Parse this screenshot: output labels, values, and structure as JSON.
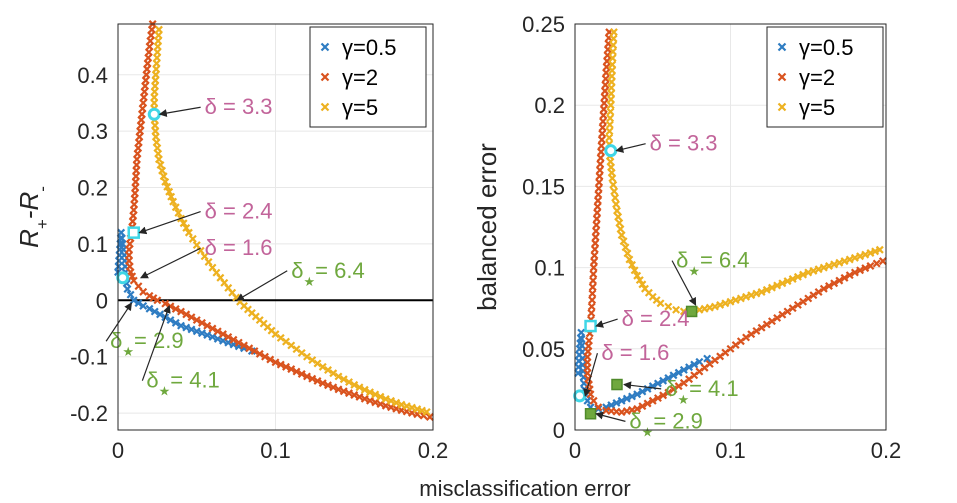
{
  "colors": {
    "s_05": "#2e7cc2",
    "s_2": "#d9531e",
    "s_5": "#edb120",
    "pink": "#c2649a",
    "green": "#6fa83e",
    "cyan": "#3fd6e6",
    "grid": "#e8e8e8",
    "axis": "#262626"
  },
  "shared_xlabel": "misclassification error",
  "chart_data": [
    {
      "type": "scatter",
      "title": "",
      "ylabel_main": "R",
      "ylabel_sub1": "+",
      "ylabel_mid": "-R",
      "ylabel_sub2": "-",
      "xlim": [
        0,
        0.2
      ],
      "ylim": [
        -0.23,
        0.49
      ],
      "xticks": [
        0,
        0.1,
        0.2
      ],
      "xtick_labels": [
        "0",
        "0.1",
        "0.2"
      ],
      "yticks": [
        -0.2,
        -0.1,
        0,
        0.1,
        0.2,
        0.3,
        0.4
      ],
      "ytick_labels": [
        "-0.2",
        "-0.1",
        "0",
        "0.1",
        "0.2",
        "0.3",
        "0.4"
      ],
      "grid": true,
      "zero_line": 0,
      "legend_position": "top-right",
      "series": [
        {
          "name": "γ=0.5",
          "color_key": "s_05",
          "marker": "x",
          "x": [
            0.0,
            0.002,
            0.003,
            0.004,
            0.005,
            0.006,
            0.008,
            0.01,
            0.013,
            0.016,
            0.02,
            0.03,
            0.04,
            0.05,
            0.06,
            0.07,
            0.08,
            0.085
          ],
          "y": [
            0.05,
            0.12,
            0.1,
            0.08,
            0.04,
            0.02,
            0.01,
            0.0,
            -0.005,
            -0.01,
            -0.015,
            -0.03,
            -0.045,
            -0.055,
            -0.065,
            -0.075,
            -0.085,
            -0.09
          ]
        },
        {
          "name": "γ=2",
          "color_key": "s_2",
          "marker": "x",
          "x": [
            0.022,
            0.02,
            0.018,
            0.016,
            0.014,
            0.012,
            0.011,
            0.01,
            0.009,
            0.008,
            0.007,
            0.007,
            0.008,
            0.01,
            0.013,
            0.016,
            0.02,
            0.025,
            0.03,
            0.04,
            0.05,
            0.06,
            0.07,
            0.08,
            0.09,
            0.1,
            0.11,
            0.12,
            0.13,
            0.14,
            0.15,
            0.16,
            0.17,
            0.18,
            0.19,
            0.198
          ],
          "y": [
            0.49,
            0.45,
            0.4,
            0.35,
            0.3,
            0.25,
            0.2,
            0.16,
            0.13,
            0.11,
            0.09,
            0.07,
            0.05,
            0.035,
            0.025,
            0.015,
            0.008,
            0.0,
            -0.006,
            -0.02,
            -0.035,
            -0.05,
            -0.065,
            -0.08,
            -0.095,
            -0.11,
            -0.122,
            -0.135,
            -0.147,
            -0.158,
            -0.168,
            -0.178,
            -0.187,
            -0.195,
            -0.202,
            -0.207
          ]
        },
        {
          "name": "γ=5",
          "color_key": "s_5",
          "marker": "x",
          "x": [
            0.026,
            0.025,
            0.024,
            0.023,
            0.023,
            0.024,
            0.026,
            0.03,
            0.035,
            0.04,
            0.045,
            0.05,
            0.055,
            0.06,
            0.065,
            0.07,
            0.075,
            0.08,
            0.09,
            0.1,
            0.11,
            0.12,
            0.13,
            0.14,
            0.15,
            0.16,
            0.17,
            0.18,
            0.19,
            0.196
          ],
          "y": [
            0.48,
            0.44,
            0.4,
            0.36,
            0.33,
            0.29,
            0.25,
            0.21,
            0.175,
            0.145,
            0.12,
            0.098,
            0.078,
            0.058,
            0.04,
            0.022,
            0.005,
            -0.01,
            -0.035,
            -0.06,
            -0.08,
            -0.1,
            -0.118,
            -0.135,
            -0.15,
            -0.163,
            -0.175,
            -0.185,
            -0.193,
            -0.198
          ]
        }
      ],
      "highlights": [
        {
          "x": 0.023,
          "y": 0.33,
          "style": "cyan-circle"
        },
        {
          "x": 0.01,
          "y": 0.12,
          "style": "cyan-square"
        },
        {
          "x": 0.003,
          "y": 0.04,
          "style": "cyan-circle"
        }
      ],
      "annotations": [
        {
          "text": "δ = 3.3",
          "color_key": "pink",
          "tx": 0.055,
          "ty": 0.33,
          "ax": 0.024,
          "ay": 0.33
        },
        {
          "text": "δ = 2.4",
          "color_key": "pink",
          "tx": 0.055,
          "ty": 0.145,
          "ax": 0.011,
          "ay": 0.12
        },
        {
          "text": "δ = 1.6",
          "color_key": "pink",
          "tx": 0.055,
          "ty": 0.08,
          "ax": 0.012,
          "ay": 0.04
        },
        {
          "text": "δ",
          "sub": "★",
          "rest": "= 6.4",
          "color_key": "green",
          "tx": 0.11,
          "ty": 0.04,
          "ax": 0.073,
          "ay": 0.0
        },
        {
          "text": "δ",
          "sub": "★",
          "rest": "= 2.9",
          "color_key": "green",
          "tx": -0.005,
          "ty": -0.085,
          "ax": 0.006,
          "ay": -0.005
        },
        {
          "text": "δ",
          "sub": "★",
          "rest": "= 4.1",
          "color_key": "green",
          "tx": 0.018,
          "ty": -0.155,
          "ax": 0.03,
          "ay": -0.01
        }
      ]
    },
    {
      "type": "scatter",
      "title": "",
      "ylabel": "balanced error",
      "xlim": [
        0,
        0.2
      ],
      "ylim": [
        0,
        0.25
      ],
      "xticks": [
        0,
        0.1,
        0.2
      ],
      "xtick_labels": [
        "0",
        "0.1",
        "0.2"
      ],
      "yticks": [
        0,
        0.05,
        0.1,
        0.15,
        0.2,
        0.25
      ],
      "ytick_labels": [
        "0",
        "0.05",
        "0.1",
        "0.15",
        "0.2",
        "0.25"
      ],
      "grid": true,
      "legend_position": "top-right",
      "series": [
        {
          "name": "γ=0.5",
          "color_key": "s_05",
          "marker": "x",
          "x": [
            0.002,
            0.003,
            0.004,
            0.005,
            0.006,
            0.008,
            0.01,
            0.015,
            0.02,
            0.03,
            0.04,
            0.05,
            0.06,
            0.07,
            0.08,
            0.085
          ],
          "y": [
            0.035,
            0.05,
            0.06,
            0.04,
            0.025,
            0.018,
            0.014,
            0.013,
            0.014,
            0.018,
            0.022,
            0.027,
            0.032,
            0.037,
            0.042,
            0.044
          ]
        },
        {
          "name": "γ=2",
          "color_key": "s_2",
          "marker": "x",
          "x": [
            0.022,
            0.02,
            0.018,
            0.016,
            0.014,
            0.012,
            0.011,
            0.01,
            0.009,
            0.008,
            0.008,
            0.009,
            0.01,
            0.012,
            0.015,
            0.02,
            0.03,
            0.04,
            0.05,
            0.06,
            0.07,
            0.08,
            0.09,
            0.1,
            0.11,
            0.12,
            0.13,
            0.14,
            0.15,
            0.16,
            0.17,
            0.18,
            0.19,
            0.198
          ],
          "y": [
            0.245,
            0.22,
            0.19,
            0.16,
            0.13,
            0.1,
            0.08,
            0.064,
            0.055,
            0.045,
            0.035,
            0.028,
            0.022,
            0.018,
            0.014,
            0.012,
            0.011,
            0.013,
            0.018,
            0.023,
            0.029,
            0.036,
            0.043,
            0.05,
            0.057,
            0.063,
            0.069,
            0.075,
            0.081,
            0.087,
            0.092,
            0.097,
            0.101,
            0.104
          ]
        },
        {
          "name": "γ=5",
          "color_key": "s_5",
          "marker": "x",
          "x": [
            0.025,
            0.024,
            0.023,
            0.022,
            0.022,
            0.024,
            0.027,
            0.03,
            0.035,
            0.04,
            0.045,
            0.05,
            0.055,
            0.06,
            0.065,
            0.07,
            0.075,
            0.08,
            0.09,
            0.1,
            0.11,
            0.12,
            0.13,
            0.14,
            0.15,
            0.16,
            0.17,
            0.18,
            0.19,
            0.196
          ],
          "y": [
            0.245,
            0.225,
            0.2,
            0.18,
            0.172,
            0.155,
            0.135,
            0.12,
            0.105,
            0.095,
            0.087,
            0.082,
            0.078,
            0.076,
            0.074,
            0.073,
            0.073,
            0.074,
            0.076,
            0.079,
            0.082,
            0.085,
            0.089,
            0.093,
            0.097,
            0.1,
            0.103,
            0.106,
            0.109,
            0.111
          ]
        }
      ],
      "highlights": [
        {
          "x": 0.023,
          "y": 0.172,
          "style": "cyan-circle"
        },
        {
          "x": 0.01,
          "y": 0.064,
          "style": "cyan-square"
        },
        {
          "x": 0.003,
          "y": 0.021,
          "style": "cyan-circle"
        },
        {
          "x": 0.075,
          "y": 0.073,
          "style": "green-square"
        },
        {
          "x": 0.027,
          "y": 0.028,
          "style": "green-square"
        },
        {
          "x": 0.01,
          "y": 0.01,
          "style": "green-square"
        }
      ],
      "annotations": [
        {
          "text": "δ = 3.3",
          "color_key": "pink",
          "tx": 0.048,
          "ty": 0.172,
          "ax": 0.024,
          "ay": 0.172
        },
        {
          "text": "δ = 2.4",
          "color_key": "pink",
          "tx": 0.03,
          "ty": 0.064,
          "ax": 0.011,
          "ay": 0.064
        },
        {
          "text": "δ = 1.6",
          "color_key": "pink",
          "tx": 0.017,
          "ty": 0.043,
          "ax": 0.004,
          "ay": 0.021
        },
        {
          "text": "δ",
          "sub": "★",
          "rest": "= 6.4",
          "color_key": "green",
          "tx": 0.065,
          "ty": 0.1,
          "ax": 0.075,
          "ay": 0.077
        },
        {
          "text": "δ",
          "sub": "★",
          "rest": "= 4.1",
          "color_key": "green",
          "tx": 0.058,
          "ty": 0.021,
          "ax": 0.029,
          "ay": 0.028
        },
        {
          "text": "δ",
          "sub": "★",
          "rest": "= 2.9",
          "color_key": "green",
          "tx": 0.035,
          "ty": 0.001,
          "ax": 0.011,
          "ay": 0.01
        }
      ]
    }
  ]
}
